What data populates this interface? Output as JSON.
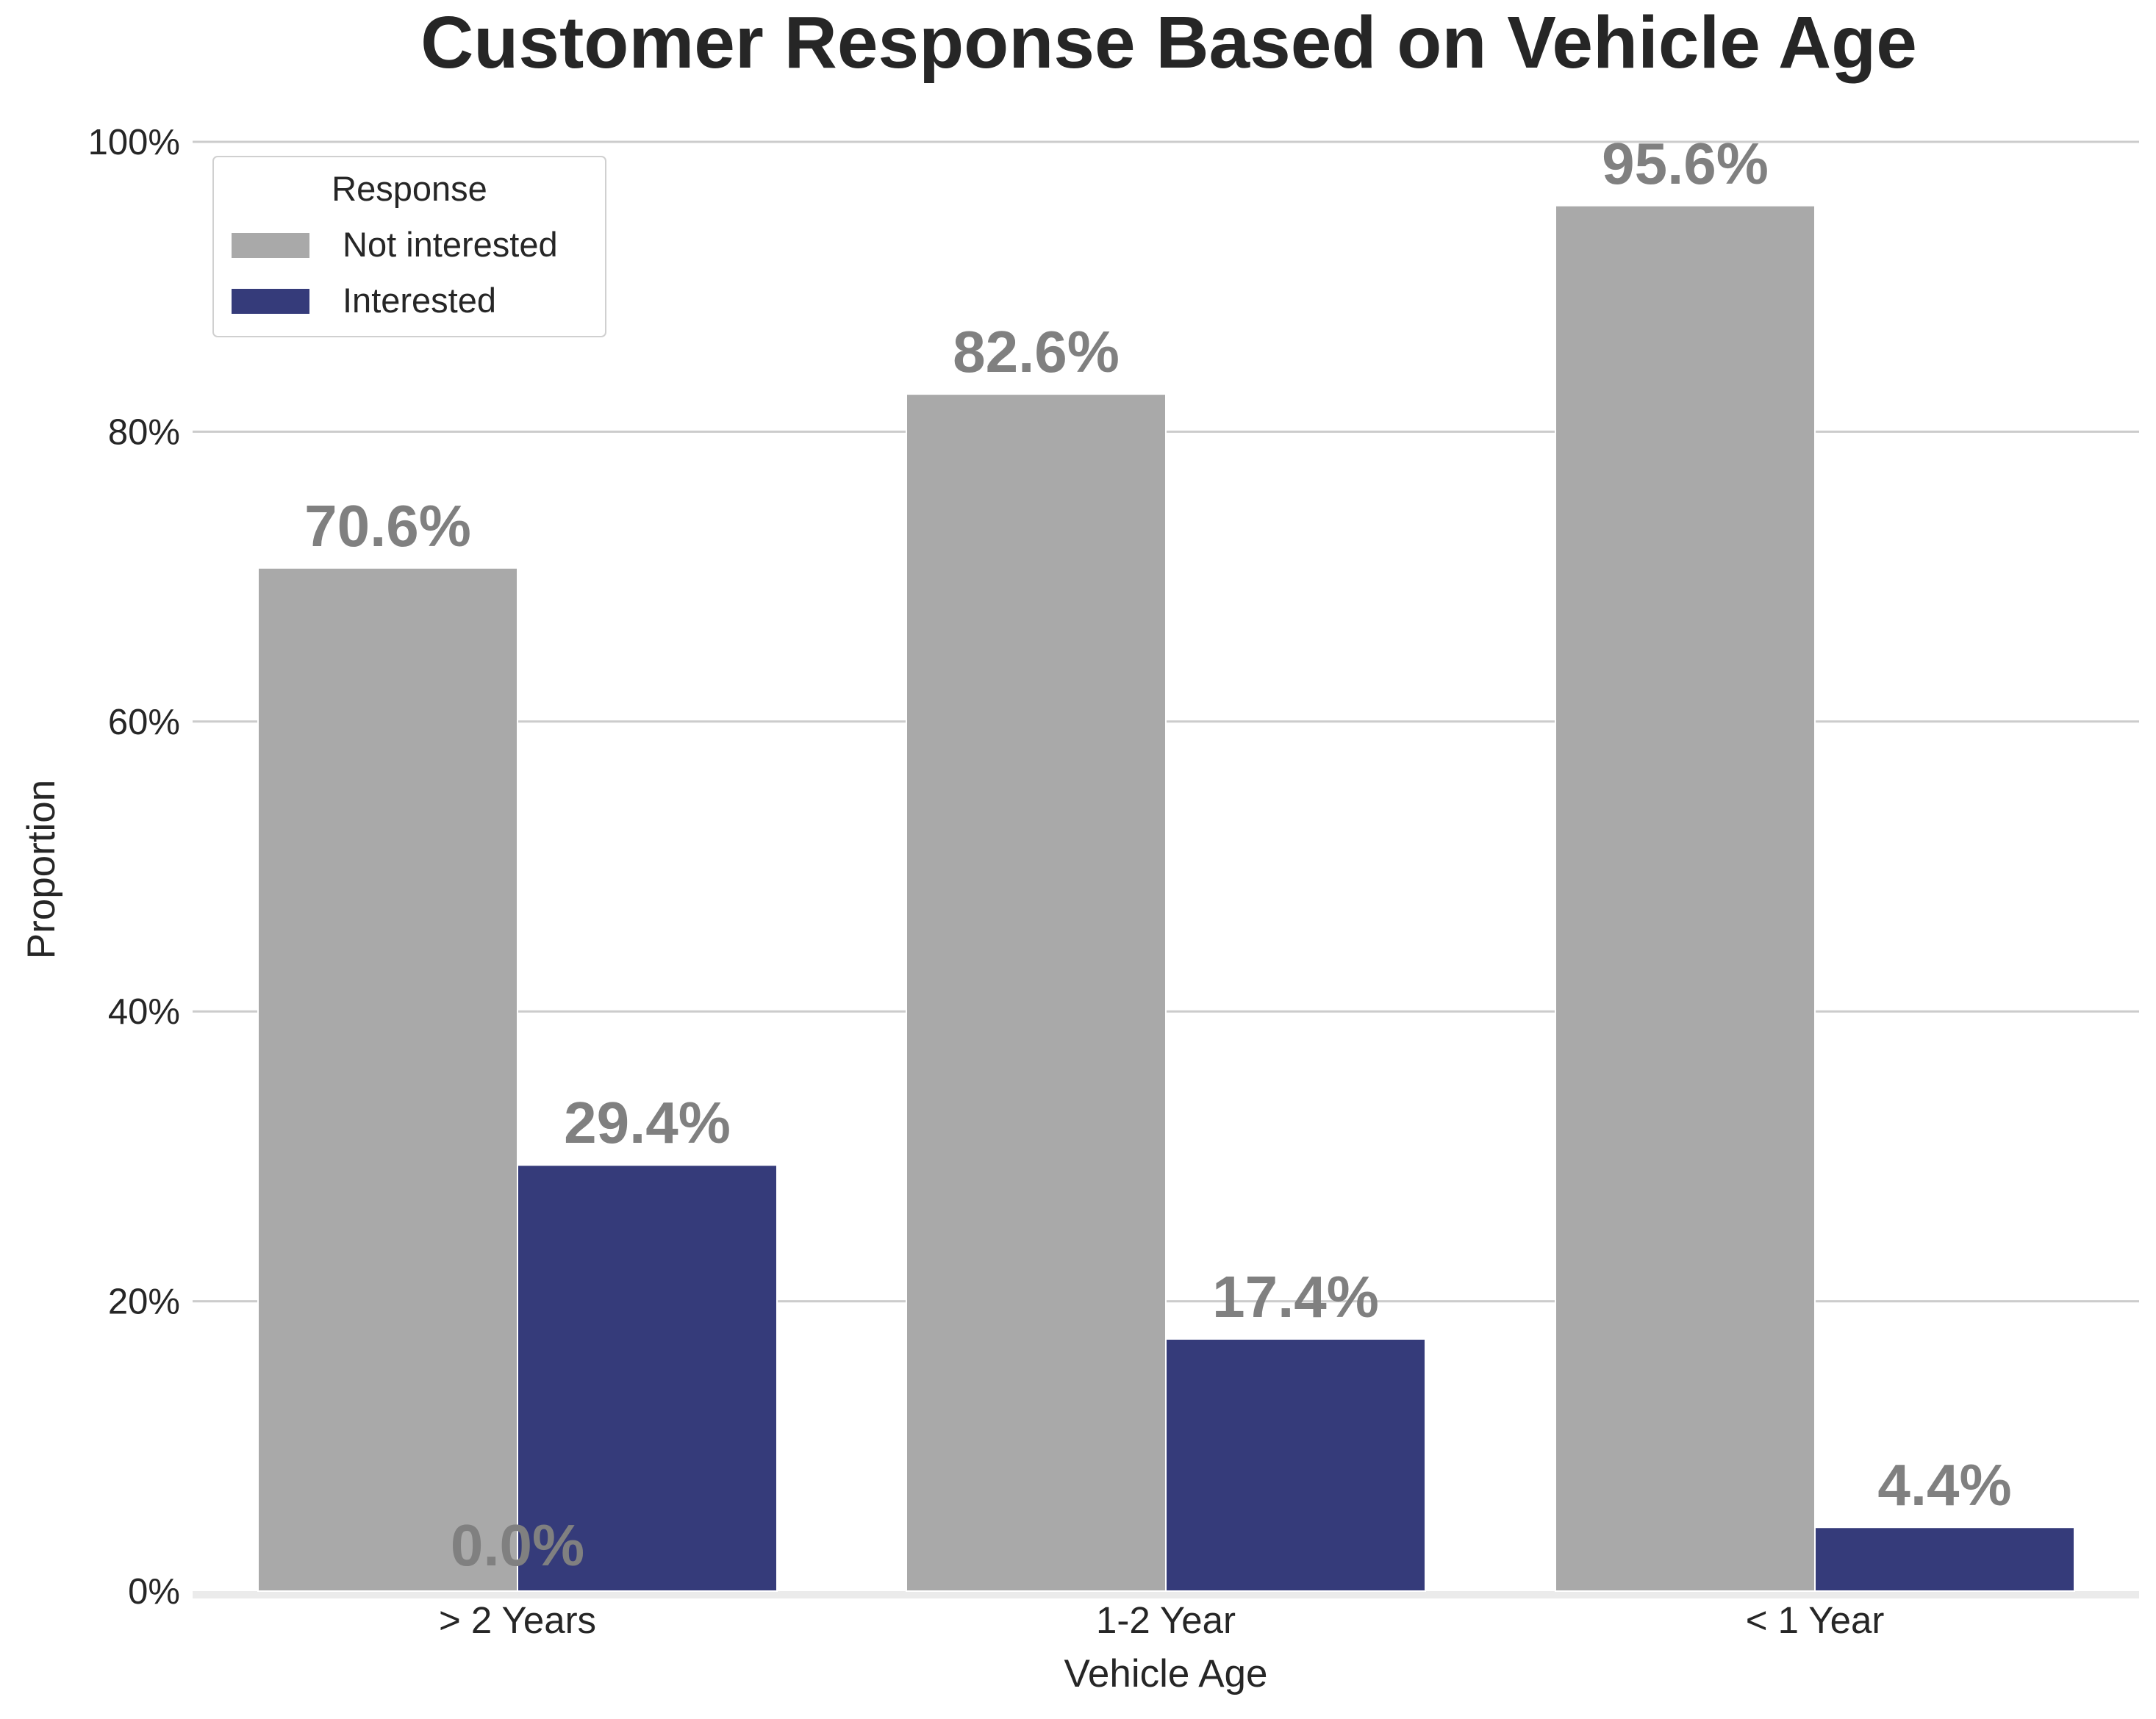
{
  "chart_data": {
    "type": "bar",
    "title": "Customer Response Based on Vehicle Age",
    "xlabel": "Vehicle Age",
    "ylabel": "Proportion",
    "categories": [
      "> 2 Years",
      "1-2 Year",
      "< 1 Year"
    ],
    "series": [
      {
        "name": "Not interested",
        "color": "#a9a9a9",
        "values": [
          70.6,
          82.6,
          95.6
        ],
        "labels": [
          "70.6%",
          "82.6%",
          "95.6%"
        ]
      },
      {
        "name": "Interested",
        "color": "#353b7a",
        "values": [
          29.4,
          17.4,
          4.4
        ],
        "labels": [
          "29.4%",
          "17.4%",
          "4.4%"
        ]
      }
    ],
    "extra_annotations": [
      "0.0%"
    ],
    "ylim": [
      0,
      100
    ],
    "yticks": [
      0,
      20,
      40,
      60,
      80,
      100
    ],
    "ytick_labels": [
      "0%",
      "20%",
      "40%",
      "60%",
      "80%",
      "100%"
    ],
    "grid": true,
    "legend": {
      "title": "Response",
      "position": "top-left"
    },
    "data_label_color": "#808080",
    "text_color": "#262626",
    "grid_color": "#cccccc",
    "baseline_color": "#ebebeb"
  }
}
